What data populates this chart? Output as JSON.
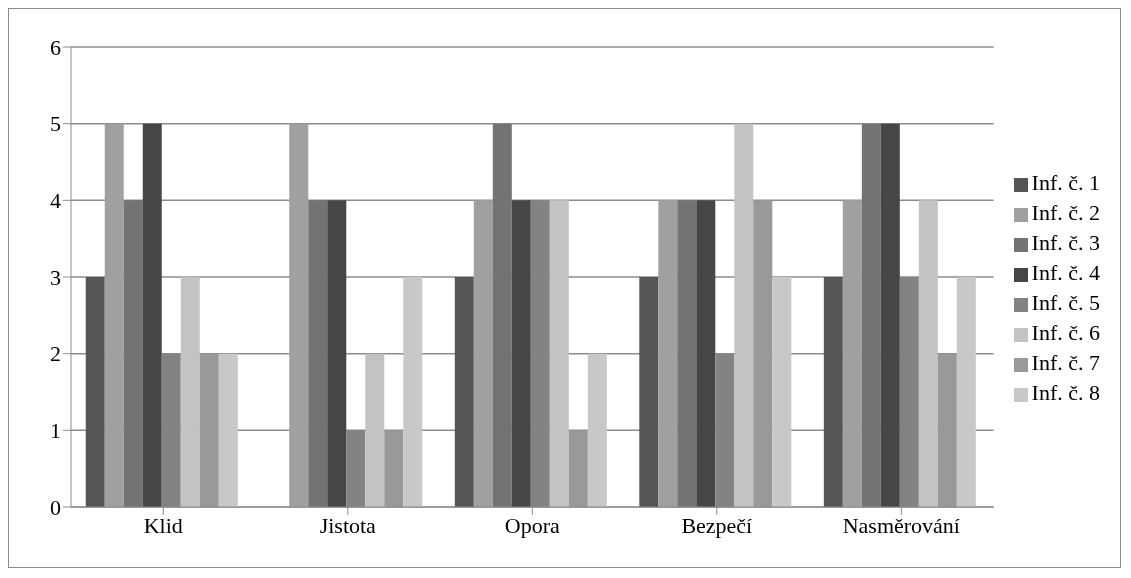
{
  "chart_data": {
    "type": "bar",
    "categories": [
      "Klid",
      "Jistota",
      "Opora",
      "Bezpečí",
      "Nasměrování"
    ],
    "series": [
      {
        "name": "Inf. č. 1",
        "color": "#555555",
        "values": [
          3,
          0,
          3,
          3,
          3
        ]
      },
      {
        "name": "Inf. č. 2",
        "color": "#a0a0a0",
        "values": [
          5,
          5,
          4,
          4,
          4
        ]
      },
      {
        "name": "Inf. č. 3",
        "color": "#737373",
        "values": [
          4,
          4,
          5,
          4,
          5
        ]
      },
      {
        "name": "Inf. č. 4",
        "color": "#464646",
        "values": [
          5,
          4,
          4,
          4,
          5
        ]
      },
      {
        "name": "Inf. č. 5",
        "color": "#838383",
        "values": [
          2,
          1,
          4,
          2,
          3
        ]
      },
      {
        "name": "Inf. č. 6",
        "color": "#c3c3c3",
        "values": [
          3,
          2,
          4,
          5,
          4
        ]
      },
      {
        "name": "Inf. č. 7",
        "color": "#999999",
        "values": [
          2,
          1,
          1,
          4,
          2
        ]
      },
      {
        "name": "Inf. č. 8",
        "color": "#c8c8c8",
        "values": [
          2,
          3,
          2,
          3,
          3
        ]
      }
    ],
    "ylim": [
      0,
      6
    ],
    "yticks": [
      0,
      1,
      2,
      3,
      4,
      5,
      6
    ],
    "grid": "y",
    "legend": "right"
  }
}
